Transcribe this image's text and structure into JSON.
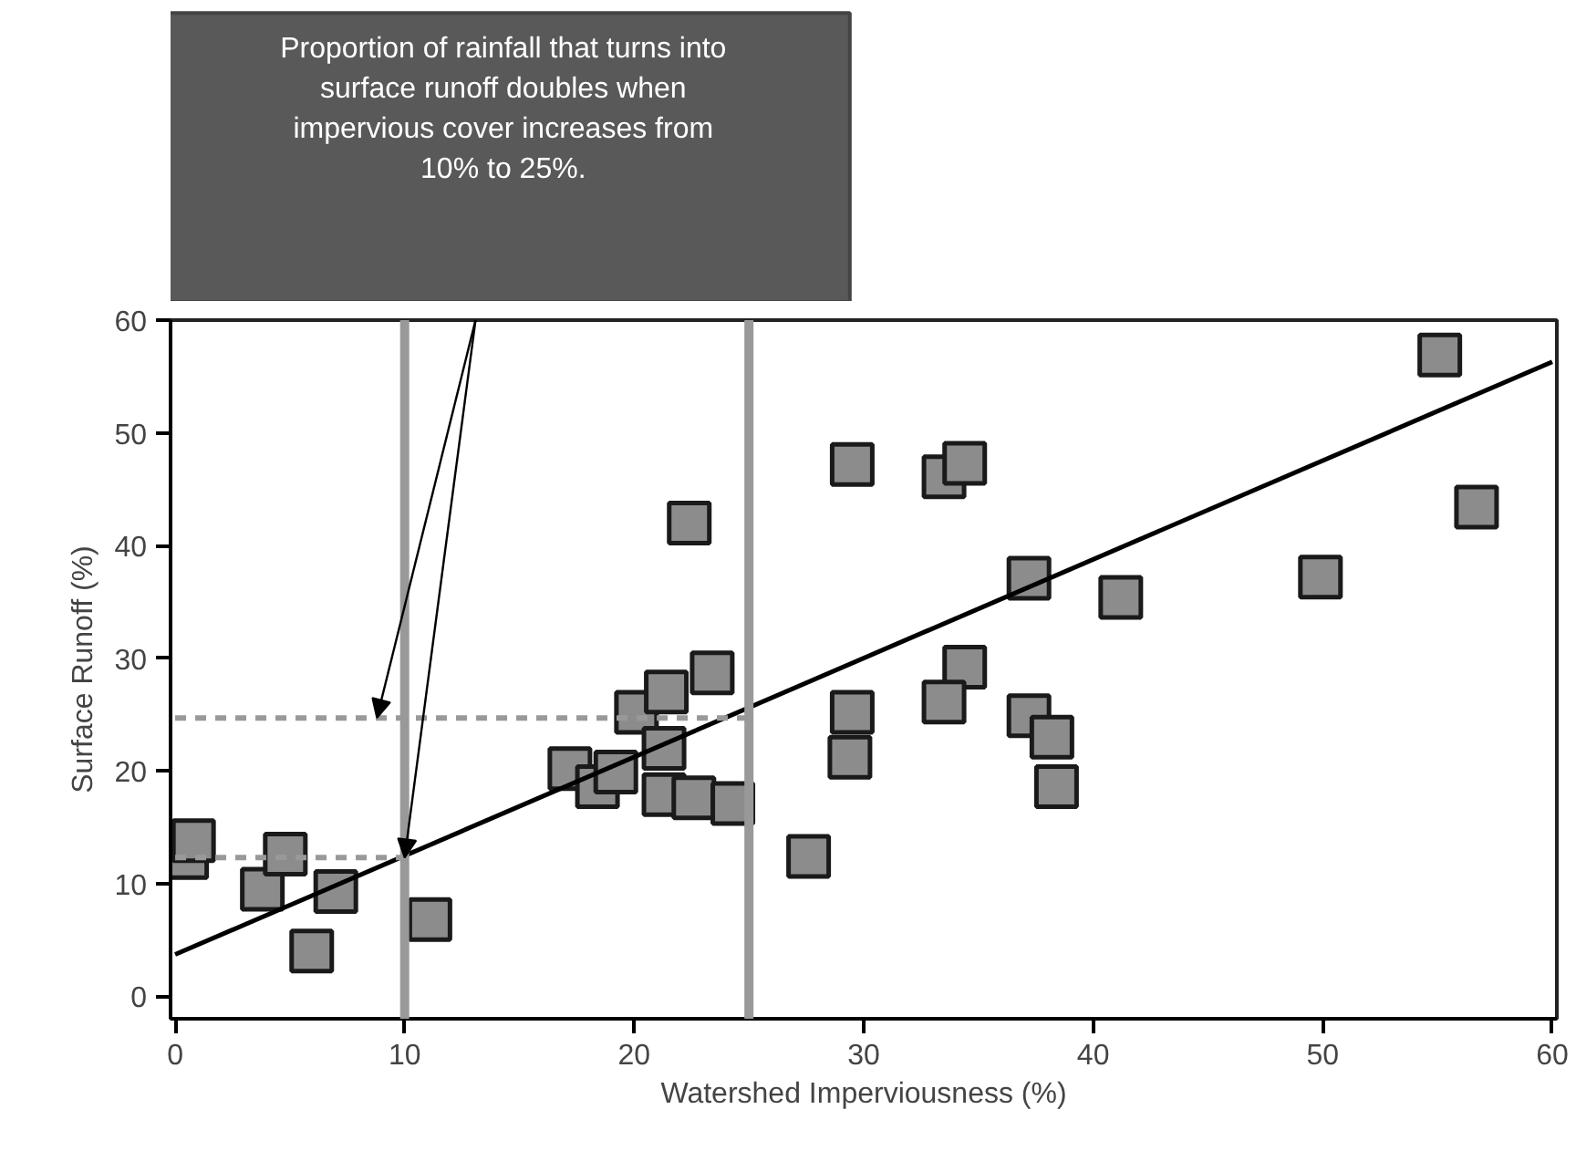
{
  "chart_data": {
    "type": "scatter",
    "xlabel": "Watershed Imperviousness (%)",
    "ylabel": "Surface Runoff (%)",
    "annotations": [
      "Proportion of rainfall that turns into\nsurface runoff doubles when\nimpervious cover increases from\n10% to 25%."
    ],
    "xlim": [
      -0.2,
      60.2
    ],
    "ylim": [
      -2,
      60
    ],
    "xticks": [
      0,
      10,
      20,
      30,
      40,
      50,
      60
    ],
    "yticks": [
      0,
      10,
      20,
      30,
      40,
      50,
      60
    ],
    "grid": false,
    "marker": "square",
    "ref_lines": [
      {
        "axis": "x",
        "value": 10,
        "color": "#999999"
      },
      {
        "axis": "x",
        "value": 25,
        "color": "#999999"
      }
    ],
    "series": [
      {
        "color": "#8c8c8c",
        "x": [
          0.5,
          0.8,
          3.8,
          4.8,
          5.95,
          7.0,
          11.1,
          17.2,
          18.4,
          19.2,
          20.1,
          21.4,
          21.3,
          21.3,
          22.6,
          23.4,
          24.3,
          22.4,
          27.6,
          29.5,
          29.5,
          29.4,
          33.5,
          34.4,
          37.2,
          41.2,
          49.9,
          55.1,
          56.7,
          34.4,
          33.5,
          37.2,
          38.2,
          38.4
        ],
        "values": [
          12.3,
          13.8,
          9.5,
          12.6,
          4.0,
          9.3,
          6.8,
          20.2,
          18.6,
          19.9,
          25.2,
          27.0,
          22.0,
          17.9,
          17.6,
          28.7,
          17.1,
          42.0,
          12.4,
          47.2,
          25.2,
          21.2,
          46.1,
          47.3,
          37.1,
          35.4,
          37.2,
          56.9,
          43.4,
          29.2,
          26.1,
          24.9,
          23.0,
          18.6
        ]
      },
      {
        "type": "line",
        "color": "#000000",
        "x": [
          0,
          60
        ],
        "values": [
          3.7,
          56.3
        ],
        "line_style": "solid",
        "marker": "none"
      },
      {
        "type": "line",
        "color": "#999999",
        "x": [
          0,
          25
        ],
        "values": [
          24.7,
          24.7
        ],
        "line_style": "dashed",
        "marker": "none"
      },
      {
        "type": "line",
        "color": "#999999",
        "x": [
          0,
          10
        ],
        "values": [
          12.3,
          12.3
        ],
        "line_style": "dashed",
        "marker": "none"
      }
    ]
  }
}
